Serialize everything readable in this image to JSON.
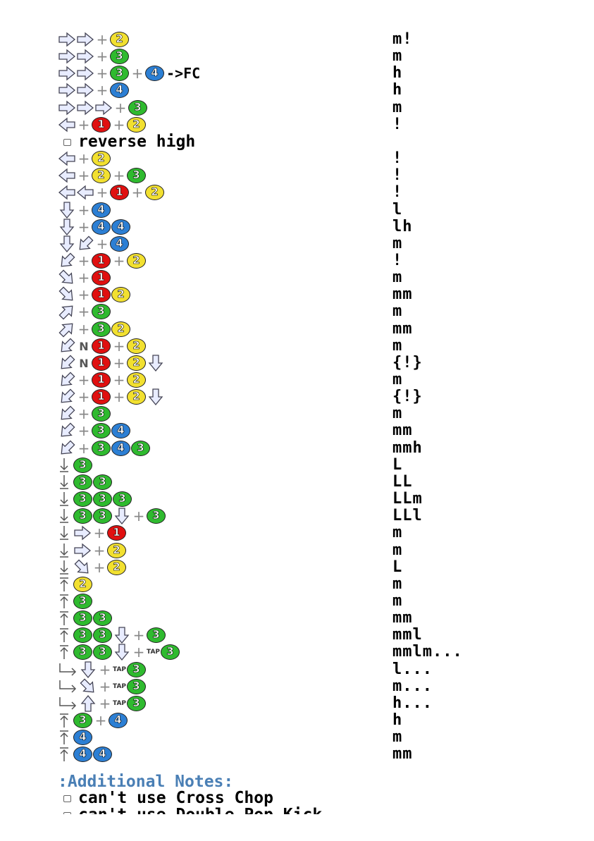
{
  "notes_heading": ":Additional Notes:",
  "sub_heading": "reverse high",
  "notes": [
    "can't use Cross Chop",
    "can't use Double Pop Kick"
  ],
  "rows": [
    {
      "cmd": [
        {
          "a": "f"
        },
        {
          "a": "f"
        },
        {
          "p": 1
        },
        {
          "b": 2
        }
      ],
      "hit": "m!"
    },
    {
      "cmd": [
        {
          "a": "f"
        },
        {
          "a": "f"
        },
        {
          "p": 1
        },
        {
          "b": 3
        }
      ],
      "hit": "m"
    },
    {
      "cmd": [
        {
          "a": "f"
        },
        {
          "a": "f"
        },
        {
          "p": 1
        },
        {
          "b": 3
        },
        {
          "p": 1
        },
        {
          "b": 4
        },
        {
          "t": "->FC"
        }
      ],
      "hit": "h"
    },
    {
      "cmd": [
        {
          "a": "f"
        },
        {
          "a": "f"
        },
        {
          "p": 1
        },
        {
          "b": 4
        }
      ],
      "hit": "h"
    },
    {
      "cmd": [
        {
          "a": "f"
        },
        {
          "a": "f"
        },
        {
          "a": "f"
        },
        {
          "p": 1
        },
        {
          "b": 3
        }
      ],
      "hit": "m"
    },
    {
      "cmd": [
        {
          "a": "b"
        },
        {
          "p": 1
        },
        {
          "b": 1
        },
        {
          "p": 1
        },
        {
          "b": 2
        }
      ],
      "hit": "!"
    },
    {
      "sub": true
    },
    {
      "cmd": [
        {
          "a": "b"
        },
        {
          "p": 1
        },
        {
          "b": 2
        }
      ],
      "hit": "!"
    },
    {
      "cmd": [
        {
          "a": "b"
        },
        {
          "p": 1
        },
        {
          "b": 2
        },
        {
          "p": 1
        },
        {
          "b": 3
        }
      ],
      "hit": "!"
    },
    {
      "cmd": [
        {
          "a": "b"
        },
        {
          "a": "b"
        },
        {
          "p": 1
        },
        {
          "b": 1
        },
        {
          "p": 1
        },
        {
          "b": 2
        }
      ],
      "hit": "!"
    },
    {
      "cmd": [
        {
          "a": "d"
        },
        {
          "p": 1
        },
        {
          "b": 4
        }
      ],
      "hit": "l"
    },
    {
      "cmd": [
        {
          "a": "d"
        },
        {
          "p": 1
        },
        {
          "b": 4
        },
        {
          "b": 4
        }
      ],
      "hit": "lh"
    },
    {
      "cmd": [
        {
          "a": "d"
        },
        {
          "a": "db"
        },
        {
          "p": 1
        },
        {
          "b": 4
        }
      ],
      "hit": "m"
    },
    {
      "cmd": [
        {
          "a": "db"
        },
        {
          "p": 1
        },
        {
          "b": 1
        },
        {
          "p": 1
        },
        {
          "b": 2
        }
      ],
      "hit": "!"
    },
    {
      "cmd": [
        {
          "a": "df"
        },
        {
          "p": 1
        },
        {
          "b": 1
        }
      ],
      "hit": "m"
    },
    {
      "cmd": [
        {
          "a": "df"
        },
        {
          "p": 1
        },
        {
          "b": 1
        },
        {
          "b": 2
        }
      ],
      "hit": "mm"
    },
    {
      "cmd": [
        {
          "a": "uf"
        },
        {
          "p": 1
        },
        {
          "b": 3
        }
      ],
      "hit": "m"
    },
    {
      "cmd": [
        {
          "a": "uf"
        },
        {
          "p": 1
        },
        {
          "b": 3
        },
        {
          "b": 2
        }
      ],
      "hit": "mm"
    },
    {
      "cmd": [
        {
          "a": "db"
        },
        {
          "n": "N"
        },
        {
          "b": 1
        },
        {
          "p": 1
        },
        {
          "b": 2
        }
      ],
      "hit": "m"
    },
    {
      "cmd": [
        {
          "a": "db"
        },
        {
          "n": "N"
        },
        {
          "b": 1
        },
        {
          "p": 1
        },
        {
          "b": 2
        },
        {
          "a": "d"
        }
      ],
      "hit": "{!}"
    },
    {
      "cmd": [
        {
          "a": "db"
        },
        {
          "p": 1
        },
        {
          "b": 1
        },
        {
          "p": 1
        },
        {
          "b": 2
        }
      ],
      "hit": "m"
    },
    {
      "cmd": [
        {
          "a": "db"
        },
        {
          "p": 1
        },
        {
          "b": 1
        },
        {
          "p": 1
        },
        {
          "b": 2
        },
        {
          "a": "d"
        }
      ],
      "hit": "{!}"
    },
    {
      "cmd": [
        {
          "a": "db"
        },
        {
          "p": 1
        },
        {
          "b": 3
        }
      ],
      "hit": "m"
    },
    {
      "cmd": [
        {
          "a": "db"
        },
        {
          "p": 1
        },
        {
          "b": 3
        },
        {
          "b": 4
        }
      ],
      "hit": "mm"
    },
    {
      "cmd": [
        {
          "a": "db"
        },
        {
          "p": 1
        },
        {
          "b": 3
        },
        {
          "b": 4
        },
        {
          "b": 3
        }
      ],
      "hit": "mmh"
    },
    {
      "cmd": [
        {
          "a": "sd"
        },
        {
          "b": 3
        }
      ],
      "hit": "L"
    },
    {
      "cmd": [
        {
          "a": "sd"
        },
        {
          "b": 3
        },
        {
          "b": 3
        }
      ],
      "hit": "LL"
    },
    {
      "cmd": [
        {
          "a": "sd"
        },
        {
          "b": 3
        },
        {
          "b": 3
        },
        {
          "b": 3
        }
      ],
      "hit": "LLm"
    },
    {
      "cmd": [
        {
          "a": "sd"
        },
        {
          "b": 3
        },
        {
          "b": 3
        },
        {
          "a": "d"
        },
        {
          "p": 1
        },
        {
          "b": 3
        }
      ],
      "hit": "LLl"
    },
    {
      "cmd": [
        {
          "a": "sd"
        },
        {
          "a": "f"
        },
        {
          "p": 1
        },
        {
          "b": 1
        }
      ],
      "hit": "m"
    },
    {
      "cmd": [
        {
          "a": "sd"
        },
        {
          "a": "f"
        },
        {
          "p": 1
        },
        {
          "b": 2
        }
      ],
      "hit": "m"
    },
    {
      "cmd": [
        {
          "a": "sd"
        },
        {
          "a": "df"
        },
        {
          "p": 1
        },
        {
          "b": 2
        }
      ],
      "hit": "L"
    },
    {
      "cmd": [
        {
          "a": "su"
        },
        {
          "b": 2
        }
      ],
      "hit": "m"
    },
    {
      "cmd": [
        {
          "a": "su"
        },
        {
          "b": 3
        }
      ],
      "hit": "m"
    },
    {
      "cmd": [
        {
          "a": "su"
        },
        {
          "b": 3
        },
        {
          "b": 3
        }
      ],
      "hit": "mm"
    },
    {
      "cmd": [
        {
          "a": "su"
        },
        {
          "b": 3
        },
        {
          "b": 3
        },
        {
          "a": "d"
        },
        {
          "p": 1
        },
        {
          "b": 3
        }
      ],
      "hit": "mml"
    },
    {
      "cmd": [
        {
          "a": "su"
        },
        {
          "b": 3
        },
        {
          "b": 3
        },
        {
          "a": "d"
        },
        {
          "p": 1
        },
        {
          "tap": "TAP"
        },
        {
          "b": 3
        }
      ],
      "hit": "mmlm..."
    },
    {
      "cmd": [
        {
          "a": "wr"
        },
        {
          "a": "d"
        },
        {
          "p": 1
        },
        {
          "tap": "TAP"
        },
        {
          "b": 3
        }
      ],
      "hit": "l..."
    },
    {
      "cmd": [
        {
          "a": "wr"
        },
        {
          "a": "df"
        },
        {
          "p": 1
        },
        {
          "tap": "TAP"
        },
        {
          "b": 3
        }
      ],
      "hit": "m..."
    },
    {
      "cmd": [
        {
          "a": "wr"
        },
        {
          "a": "u"
        },
        {
          "p": 1
        },
        {
          "tap": "TAP"
        },
        {
          "b": 3
        }
      ],
      "hit": "h..."
    },
    {
      "cmd": [
        {
          "a": "su"
        },
        {
          "b": 3
        },
        {
          "p": 1
        },
        {
          "b": 4
        }
      ],
      "hit": "h"
    },
    {
      "cmd": [
        {
          "a": "su"
        },
        {
          "b": 4
        }
      ],
      "hit": "m"
    },
    {
      "cmd": [
        {
          "a": "su"
        },
        {
          "b": 4
        },
        {
          "b": 4
        }
      ],
      "hit": "mm"
    }
  ],
  "button_labels": {
    "1": "1",
    "2": "2",
    "3": "3",
    "4": "4"
  },
  "plus_glyph": "+",
  "colors": {
    "b1": "#e01010",
    "b2": "#f2e030",
    "b3": "#2fba2f",
    "b4": "#2c7fd4",
    "notes_heading": "#4a7fb5"
  }
}
